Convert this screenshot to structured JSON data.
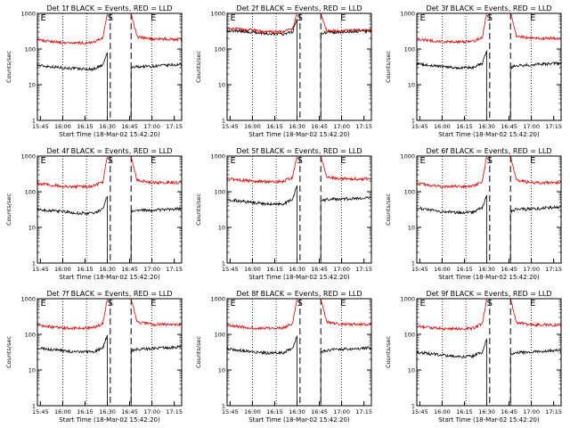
{
  "figure": {
    "colors": {
      "events": "#000000",
      "lld": "#e00000",
      "axis": "#000000",
      "background": "#ffffff"
    }
  },
  "chart_data": [
    {
      "type": "line",
      "title": "Det 1f BLACK = Events, RED = LLD",
      "xlabel": "Start Time (18-Mar-02 15:42:20)",
      "ylabel": "Counts/sec",
      "yscale": "log",
      "ylim": [
        1,
        1000
      ],
      "yticks": [
        "1",
        "10",
        "100",
        "1000"
      ],
      "xlim": [
        "15:43",
        "17:20"
      ],
      "xticks": [
        "15:45",
        "16:00",
        "16:15",
        "16:30",
        "16:45",
        "17:00",
        "17:15"
      ],
      "saa_start": "16:30",
      "saa_end": "16:46",
      "vline_times": [
        "16:00",
        "16:16",
        "17:00"
      ],
      "dashed_times": [
        "16:32",
        "16:46"
      ],
      "markers": [
        {
          "label": "E",
          "time": "15:47"
        },
        {
          "label": "S",
          "time": "16:32"
        },
        {
          "label": "E",
          "time": "17:01"
        }
      ],
      "series": [
        {
          "role": "events",
          "x": [
            "15:43",
            "16:00",
            "16:10",
            "16:20",
            "16:27",
            "16:30"
          ],
          "y": [
            35,
            30,
            28,
            27,
            35,
            80
          ],
          "x2": [
            "16:46",
            "16:50",
            "17:00",
            "17:10",
            "17:20"
          ],
          "y2": [
            30,
            32,
            33,
            35,
            37
          ]
        },
        {
          "role": "lld",
          "x": [
            "15:43",
            "16:00",
            "16:10",
            "16:20",
            "16:27",
            "16:30"
          ],
          "y": [
            180,
            150,
            150,
            150,
            200,
            1000
          ],
          "x2": [
            "16:46",
            "16:50",
            "17:00",
            "17:10",
            "17:20"
          ],
          "y2": [
            1000,
            220,
            190,
            190,
            190
          ]
        }
      ]
    },
    {
      "type": "line",
      "title": "Det 2f BLACK = Events, RED = LLD",
      "xlabel": "Start Time (18-Mar-02 15:42:20)",
      "ylabel": "Counts/sec",
      "yscale": "log",
      "ylim": [
        1,
        1000
      ],
      "yticks": [
        "1",
        "10",
        "100",
        "1000"
      ],
      "xlim": [
        "15:43",
        "17:20"
      ],
      "xticks": [
        "15:45",
        "16:00",
        "16:15",
        "16:30",
        "16:45",
        "17:00",
        "17:15"
      ],
      "saa_start": "16:30",
      "saa_end": "16:46",
      "vline_times": [
        "16:00",
        "16:16",
        "17:00"
      ],
      "dashed_times": [
        "16:32",
        "16:46"
      ],
      "markers": [
        {
          "label": "E",
          "time": "15:47"
        },
        {
          "label": "S",
          "time": "16:32"
        },
        {
          "label": "E",
          "time": "17:01"
        }
      ],
      "series": [
        {
          "role": "events",
          "x": [
            "15:43",
            "16:00",
            "16:10",
            "16:20",
            "16:27",
            "16:30"
          ],
          "y": [
            330,
            300,
            270,
            260,
            300,
            700
          ],
          "x2": [
            "16:46",
            "16:50",
            "17:00",
            "17:10",
            "17:20"
          ],
          "y2": [
            280,
            290,
            300,
            310,
            320
          ]
        },
        {
          "role": "lld",
          "x": [
            "15:43",
            "16:00",
            "16:10",
            "16:20",
            "16:27",
            "16:30"
          ],
          "y": [
            380,
            340,
            300,
            300,
            360,
            1000
          ],
          "x2": [
            "16:46",
            "16:50",
            "17:00",
            "17:10",
            "17:20"
          ],
          "y2": [
            1000,
            330,
            320,
            340,
            360
          ]
        }
      ]
    },
    {
      "type": "line",
      "title": "Det 3f BLACK = Events, RED = LLD",
      "xlabel": "Start Time (18-Mar-02 15:42:20)",
      "ylabel": "Counts/sec",
      "yscale": "log",
      "ylim": [
        1,
        1000
      ],
      "yticks": [
        "1",
        "10",
        "100",
        "1000"
      ],
      "xlim": [
        "15:43",
        "17:20"
      ],
      "xticks": [
        "15:45",
        "16:00",
        "16:15",
        "16:30",
        "16:45",
        "17:00",
        "17:15"
      ],
      "saa_start": "16:30",
      "saa_end": "16:46",
      "vline_times": [
        "16:00",
        "16:16",
        "17:00"
      ],
      "dashed_times": [
        "16:32",
        "16:46"
      ],
      "markers": [
        {
          "label": "E",
          "time": "15:47"
        },
        {
          "label": "S",
          "time": "16:32"
        },
        {
          "label": "E",
          "time": "17:01"
        }
      ],
      "series": [
        {
          "role": "events",
          "x": [
            "15:43",
            "16:00",
            "16:10",
            "16:20",
            "16:27",
            "16:30"
          ],
          "y": [
            38,
            32,
            30,
            30,
            40,
            90
          ],
          "x2": [
            "16:46",
            "16:50",
            "17:00",
            "17:10",
            "17:20"
          ],
          "y2": [
            30,
            35,
            36,
            38,
            40
          ]
        },
        {
          "role": "lld",
          "x": [
            "15:43",
            "16:00",
            "16:10",
            "16:20",
            "16:27",
            "16:30"
          ],
          "y": [
            190,
            160,
            160,
            160,
            210,
            1000
          ],
          "x2": [
            "16:46",
            "16:50",
            "17:00",
            "17:10",
            "17:20"
          ],
          "y2": [
            1000,
            230,
            200,
            200,
            200
          ]
        }
      ]
    },
    {
      "type": "line",
      "title": "Det 4f BLACK = Events, RED = LLD",
      "xlabel": "Start Time (18-Mar-02 15:42:20)",
      "ylabel": "Counts/sec",
      "yscale": "log",
      "ylim": [
        1,
        1000
      ],
      "yticks": [
        "1",
        "10",
        "100",
        "1000"
      ],
      "xlim": [
        "15:43",
        "17:20"
      ],
      "xticks": [
        "15:45",
        "16:00",
        "16:15",
        "16:30",
        "16:45",
        "17:00",
        "17:15"
      ],
      "saa_start": "16:30",
      "saa_end": "16:46",
      "vline_times": [
        "16:00",
        "16:16",
        "17:00"
      ],
      "dashed_times": [
        "16:32",
        "16:46"
      ],
      "markers": [
        {
          "label": "E",
          "time": "15:47"
        },
        {
          "label": "S",
          "time": "16:32"
        },
        {
          "label": "E",
          "time": "17:01"
        }
      ],
      "series": [
        {
          "role": "events",
          "x": [
            "15:43",
            "16:00",
            "16:10",
            "16:20",
            "16:27",
            "16:30"
          ],
          "y": [
            32,
            28,
            25,
            25,
            32,
            75
          ],
          "x2": [
            "16:46",
            "16:50",
            "17:00",
            "17:10",
            "17:20"
          ],
          "y2": [
            28,
            30,
            30,
            32,
            34
          ]
        },
        {
          "role": "lld",
          "x": [
            "15:43",
            "16:00",
            "16:10",
            "16:20",
            "16:27",
            "16:30"
          ],
          "y": [
            170,
            140,
            140,
            140,
            190,
            1000
          ],
          "x2": [
            "16:46",
            "16:50",
            "17:00",
            "17:10",
            "17:20"
          ],
          "y2": [
            1000,
            210,
            180,
            180,
            180
          ]
        }
      ]
    },
    {
      "type": "line",
      "title": "Det 5f BLACK = Events, RED = LLD",
      "xlabel": "Start Time (18-Mar-02 15:42:20)",
      "ylabel": "Counts/sec",
      "yscale": "log",
      "ylim": [
        1,
        1000
      ],
      "yticks": [
        "1",
        "10",
        "100",
        "1000"
      ],
      "xlim": [
        "15:43",
        "17:20"
      ],
      "xticks": [
        "15:45",
        "16:00",
        "16:15",
        "16:30",
        "16:45",
        "17:00",
        "17:15"
      ],
      "saa_start": "16:30",
      "saa_end": "16:46",
      "vline_times": [
        "16:00",
        "16:16",
        "17:00"
      ],
      "dashed_times": [
        "16:32",
        "16:46"
      ],
      "markers": [
        {
          "label": "E",
          "time": "15:47"
        },
        {
          "label": "S",
          "time": "16:32"
        },
        {
          "label": "E",
          "time": "17:01"
        }
      ],
      "series": [
        {
          "role": "events",
          "x": [
            "15:43",
            "16:00",
            "16:10",
            "16:20",
            "16:27",
            "16:30"
          ],
          "y": [
            60,
            50,
            45,
            45,
            60,
            150
          ],
          "x2": [
            "16:46",
            "16:50",
            "17:00",
            "17:10",
            "17:20"
          ],
          "y2": [
            55,
            60,
            62,
            65,
            68
          ]
        },
        {
          "role": "lld",
          "x": [
            "15:43",
            "16:00",
            "16:10",
            "16:20",
            "16:27",
            "16:30"
          ],
          "y": [
            230,
            200,
            190,
            190,
            250,
            1000
          ],
          "x2": [
            "16:46",
            "16:50",
            "17:00",
            "17:10",
            "17:20"
          ],
          "y2": [
            1000,
            260,
            230,
            230,
            230
          ]
        }
      ]
    },
    {
      "type": "line",
      "title": "Det 6f BLACK = Events, RED = LLD",
      "xlabel": "Start Time (18-Mar-02 15:42:20)",
      "ylabel": "Counts/sec",
      "yscale": "log",
      "ylim": [
        1,
        1000
      ],
      "yticks": [
        "1",
        "10",
        "100",
        "1000"
      ],
      "xlim": [
        "15:43",
        "17:20"
      ],
      "xticks": [
        "15:45",
        "16:00",
        "16:15",
        "16:30",
        "16:45",
        "17:00",
        "17:15"
      ],
      "saa_start": "16:30",
      "saa_end": "16:46",
      "vline_times": [
        "16:00",
        "16:16",
        "17:00"
      ],
      "dashed_times": [
        "16:32",
        "16:46"
      ],
      "markers": [
        {
          "label": "E",
          "time": "15:47"
        },
        {
          "label": "S",
          "time": "16:32"
        },
        {
          "label": "E",
          "time": "17:01"
        }
      ],
      "series": [
        {
          "role": "events",
          "x": [
            "15:43",
            "16:00",
            "16:10",
            "16:20",
            "16:27",
            "16:30"
          ],
          "y": [
            35,
            28,
            26,
            26,
            35,
            80
          ],
          "x2": [
            "16:46",
            "16:50",
            "17:00",
            "17:10",
            "17:20"
          ],
          "y2": [
            28,
            32,
            33,
            35,
            37
          ]
        },
        {
          "role": "lld",
          "x": [
            "15:43",
            "16:00",
            "16:10",
            "16:20",
            "16:27",
            "16:30"
          ],
          "y": [
            170,
            140,
            140,
            140,
            190,
            1000
          ],
          "x2": [
            "16:46",
            "16:50",
            "17:00",
            "17:10",
            "17:20"
          ],
          "y2": [
            1000,
            210,
            180,
            180,
            180
          ]
        }
      ]
    },
    {
      "type": "line",
      "title": "Det 7f BLACK = Events, RED = LLD",
      "xlabel": "Start Time (18-Mar-02 15:42:20)",
      "ylabel": "Counts/sec",
      "yscale": "log",
      "ylim": [
        1,
        1000
      ],
      "yticks": [
        "1",
        "10",
        "100",
        "1000"
      ],
      "xlim": [
        "15:43",
        "17:20"
      ],
      "xticks": [
        "15:45",
        "16:00",
        "16:15",
        "16:30",
        "16:45",
        "17:00",
        "17:15"
      ],
      "saa_start": "16:30",
      "saa_end": "16:46",
      "vline_times": [
        "16:00",
        "16:16",
        "17:00"
      ],
      "dashed_times": [
        "16:32",
        "16:46"
      ],
      "markers": [
        {
          "label": "E",
          "time": "15:47"
        },
        {
          "label": "S",
          "time": "16:32"
        },
        {
          "label": "E",
          "time": "17:01"
        }
      ],
      "series": [
        {
          "role": "events",
          "x": [
            "15:43",
            "16:00",
            "16:10",
            "16:20",
            "16:27",
            "16:30"
          ],
          "y": [
            42,
            35,
            32,
            32,
            42,
            95
          ],
          "x2": [
            "16:46",
            "16:50",
            "17:00",
            "17:10",
            "17:20"
          ],
          "y2": [
            35,
            38,
            40,
            42,
            45
          ]
        },
        {
          "role": "lld",
          "x": [
            "15:43",
            "16:00",
            "16:10",
            "16:20",
            "16:27",
            "16:30"
          ],
          "y": [
            180,
            150,
            150,
            150,
            200,
            1000
          ],
          "x2": [
            "16:46",
            "16:50",
            "17:00",
            "17:10",
            "17:20"
          ],
          "y2": [
            1000,
            220,
            190,
            190,
            190
          ]
        }
      ]
    },
    {
      "type": "line",
      "title": "Det 8f BLACK = Events, RED = LLD",
      "xlabel": "Start Time (18-Mar-02 15:42:20)",
      "ylabel": "Counts/sec",
      "yscale": "log",
      "ylim": [
        1,
        1000
      ],
      "yticks": [
        "1",
        "10",
        "100",
        "1000"
      ],
      "xlim": [
        "15:43",
        "17:20"
      ],
      "xticks": [
        "15:45",
        "16:00",
        "16:15",
        "16:30",
        "16:45",
        "17:00",
        "17:15"
      ],
      "saa_start": "16:30",
      "saa_end": "16:46",
      "vline_times": [
        "16:00",
        "16:16",
        "17:00"
      ],
      "dashed_times": [
        "16:32",
        "16:46"
      ],
      "markers": [
        {
          "label": "E",
          "time": "15:47"
        },
        {
          "label": "S",
          "time": "16:32"
        },
        {
          "label": "E",
          "time": "17:01"
        }
      ],
      "series": [
        {
          "role": "events",
          "x": [
            "15:43",
            "16:00",
            "16:10",
            "16:20",
            "16:27",
            "16:30"
          ],
          "y": [
            40,
            32,
            30,
            30,
            40,
            90
          ],
          "x2": [
            "16:46",
            "16:50",
            "17:00",
            "17:10",
            "17:20"
          ],
          "y2": [
            32,
            36,
            38,
            40,
            42
          ]
        },
        {
          "role": "lld",
          "x": [
            "15:43",
            "16:00",
            "16:10",
            "16:20",
            "16:27",
            "16:30"
          ],
          "y": [
            180,
            150,
            150,
            150,
            200,
            1000
          ],
          "x2": [
            "16:46",
            "16:50",
            "17:00",
            "17:10",
            "17:20"
          ],
          "y2": [
            1000,
            220,
            190,
            190,
            190
          ]
        }
      ]
    },
    {
      "type": "line",
      "title": "Det 9f BLACK = Events, RED = LLD",
      "xlabel": "Start Time (18-Mar-02 15:42:20)",
      "ylabel": "Counts/sec",
      "yscale": "log",
      "ylim": [
        1,
        1000
      ],
      "yticks": [
        "1",
        "10",
        "100",
        "1000"
      ],
      "xlim": [
        "15:43",
        "17:20"
      ],
      "xticks": [
        "15:45",
        "16:00",
        "16:15",
        "16:30",
        "16:45",
        "17:00",
        "17:15"
      ],
      "saa_start": "16:30",
      "saa_end": "16:46",
      "vline_times": [
        "16:00",
        "16:16",
        "17:00"
      ],
      "dashed_times": [
        "16:32",
        "16:46"
      ],
      "markers": [
        {
          "label": "E",
          "time": "15:47"
        },
        {
          "label": "S",
          "time": "16:32"
        },
        {
          "label": "E",
          "time": "17:01"
        }
      ],
      "series": [
        {
          "role": "events",
          "x": [
            "15:43",
            "16:00",
            "16:10",
            "16:20",
            "16:27",
            "16:30"
          ],
          "y": [
            32,
            26,
            24,
            24,
            32,
            75
          ],
          "x2": [
            "16:46",
            "16:50",
            "17:00",
            "17:10",
            "17:20"
          ],
          "y2": [
            28,
            31,
            32,
            34,
            36
          ]
        },
        {
          "role": "lld",
          "x": [
            "15:43",
            "16:00",
            "16:10",
            "16:20",
            "16:27",
            "16:30"
          ],
          "y": [
            170,
            145,
            145,
            145,
            195,
            1000
          ],
          "x2": [
            "16:46",
            "16:50",
            "17:00",
            "17:10",
            "17:20"
          ],
          "y2": [
            1000,
            215,
            185,
            185,
            185
          ]
        }
      ]
    }
  ]
}
